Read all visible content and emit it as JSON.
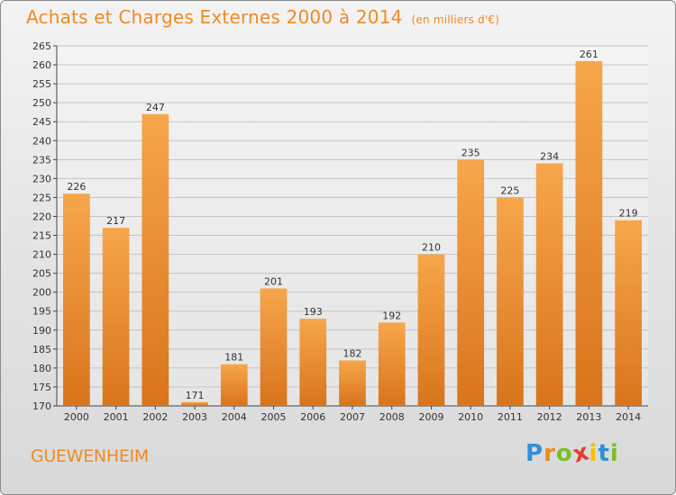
{
  "header": {
    "title": "Achats et Charges Externes 2000 à 2014",
    "subtitle": "(en milliers d'€)"
  },
  "footer": {
    "commune": "GUEWENHEIM",
    "logo_letters": [
      "P",
      "r",
      "o",
      "x",
      "i",
      "t",
      "i"
    ]
  },
  "colors": {
    "bar_light": "#f7a64b",
    "bar_dark": "#d9741c",
    "accent": "#f08a24",
    "logo": [
      "#2f8fd8",
      "#f08a24",
      "#7bbf2a",
      "#e83c2f",
      "#f2c300",
      "#2f8fd8",
      "#7bbf2a"
    ]
  },
  "chart_data": {
    "type": "bar",
    "title": "Achats et Charges Externes 2000 à 2014",
    "subtitle": "(en milliers d'€)",
    "categories": [
      "2000",
      "2001",
      "2002",
      "2003",
      "2004",
      "2005",
      "2006",
      "2007",
      "2008",
      "2009",
      "2010",
      "2011",
      "2012",
      "2013",
      "2014"
    ],
    "values": [
      226,
      217,
      247,
      171,
      181,
      201,
      193,
      182,
      192,
      210,
      235,
      225,
      234,
      261,
      219
    ],
    "xlabel": "",
    "ylabel": "",
    "ylim": [
      170,
      265
    ],
    "ytick_step": 5,
    "grid": true
  }
}
